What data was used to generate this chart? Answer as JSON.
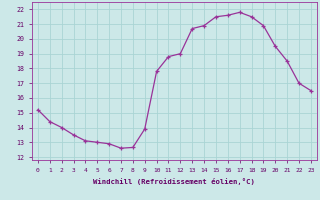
{
  "x": [
    0,
    1,
    2,
    3,
    4,
    5,
    6,
    7,
    8,
    9,
    10,
    11,
    12,
    13,
    14,
    15,
    16,
    17,
    18,
    19,
    20,
    21,
    22,
    23
  ],
  "y": [
    15.2,
    14.4,
    14.0,
    13.5,
    13.1,
    13.0,
    12.9,
    12.6,
    12.65,
    13.9,
    17.8,
    18.8,
    19.0,
    20.7,
    20.9,
    21.5,
    21.6,
    21.8,
    21.5,
    20.9,
    19.5,
    18.5,
    17.0,
    16.5
  ],
  "line_color": "#993399",
  "marker": "+",
  "bg_color": "#cce8e8",
  "grid_color": "#aad4d4",
  "xlabel": "Windchill (Refroidissement éolien,°C)",
  "ylabel_ticks": [
    12,
    13,
    14,
    15,
    16,
    17,
    18,
    19,
    20,
    21,
    22
  ],
  "xlim": [
    -0.5,
    23.5
  ],
  "ylim": [
    11.8,
    22.5
  ],
  "xticks": [
    0,
    1,
    2,
    3,
    4,
    5,
    6,
    7,
    8,
    9,
    10,
    11,
    12,
    13,
    14,
    15,
    16,
    17,
    18,
    19,
    20,
    21,
    22,
    23
  ]
}
